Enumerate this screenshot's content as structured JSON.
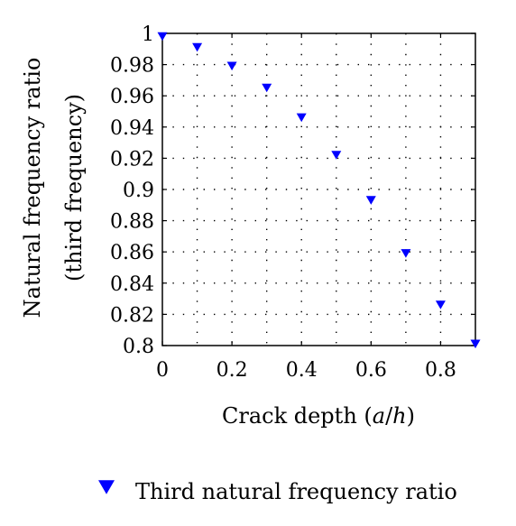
{
  "chart_data": {
    "type": "scatter",
    "title": "",
    "xlabel": "Crack depth (a/h)",
    "ylabel_lines": [
      "Natural frequency ratio",
      "(third frequency)"
    ],
    "xlim": [
      0,
      0.9
    ],
    "ylim": [
      0.8,
      1.0
    ],
    "xticks": [
      0,
      0.2,
      0.4,
      0.6,
      0.8
    ],
    "yticks": [
      0.8,
      0.82,
      0.84,
      0.86,
      0.88,
      0.9,
      0.92,
      0.94,
      0.96,
      0.98,
      1
    ],
    "grid": true,
    "grid_style": "dotted",
    "legend_position": "bottom",
    "series": [
      {
        "name": "Third natural frequency ratio",
        "marker": "triangle-down",
        "color": "#0000ff",
        "x": [
          0,
          0.1,
          0.2,
          0.3,
          0.4,
          0.5,
          0.6,
          0.7,
          0.8,
          0.9
        ],
        "y": [
          0.998,
          0.991,
          0.979,
          0.965,
          0.946,
          0.922,
          0.893,
          0.859,
          0.826,
          0.801
        ]
      }
    ]
  }
}
